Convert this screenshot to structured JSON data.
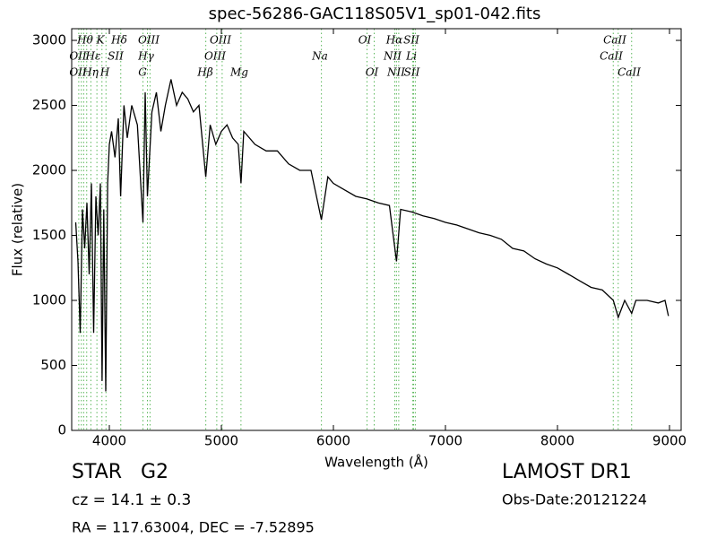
{
  "chart_data": {
    "type": "line",
    "title": "spec-56286-GAC118S05V1_sp01-042.fits",
    "xlabel": "Wavelength (Å)",
    "ylabel": "Flux (relative)",
    "color": "#000000",
    "line_color": "#5cb85c",
    "xlim": [
      3664,
      9104
    ],
    "ylim": [
      0,
      3090
    ],
    "xticks": [
      4000,
      5000,
      6000,
      7000,
      8000,
      9000
    ],
    "yticks": [
      0,
      500,
      1000,
      1500,
      2000,
      2500,
      3000
    ],
    "x": [
      3700,
      3720,
      3740,
      3760,
      3780,
      3800,
      3820,
      3840,
      3860,
      3880,
      3900,
      3920,
      3935,
      3950,
      3968,
      3985,
      4000,
      4020,
      4050,
      4080,
      4101,
      4130,
      4160,
      4200,
      4250,
      4300,
      4320,
      4340,
      4380,
      4420,
      4460,
      4500,
      4550,
      4600,
      4650,
      4700,
      4750,
      4800,
      4861,
      4900,
      4950,
      5000,
      5050,
      5100,
      5150,
      5175,
      5200,
      5300,
      5400,
      5500,
      5600,
      5700,
      5800,
      5893,
      5950,
      6000,
      6100,
      6200,
      6300,
      6400,
      6500,
      6563,
      6600,
      6700,
      6800,
      6900,
      7000,
      7100,
      7200,
      7300,
      7400,
      7500,
      7600,
      7700,
      7800,
      7900,
      8000,
      8100,
      8200,
      8300,
      8400,
      8498,
      8542,
      8600,
      8662,
      8700,
      8800,
      8900,
      8960,
      8990
    ],
    "values": [
      1600,
      1300,
      750,
      1700,
      1400,
      1750,
      1200,
      1900,
      750,
      1800,
      1500,
      1900,
      380,
      1700,
      300,
      1900,
      2200,
      2300,
      2100,
      2400,
      1800,
      2500,
      2250,
      2500,
      2350,
      1600,
      2600,
      1800,
      2450,
      2600,
      2300,
      2500,
      2700,
      2500,
      2600,
      2550,
      2450,
      2500,
      1950,
      2350,
      2200,
      2300,
      2350,
      2250,
      2200,
      1900,
      2300,
      2200,
      2150,
      2150,
      2050,
      2000,
      2000,
      1620,
      1950,
      1900,
      1850,
      1800,
      1780,
      1750,
      1730,
      1300,
      1700,
      1680,
      1650,
      1630,
      1600,
      1580,
      1550,
      1520,
      1500,
      1470,
      1400,
      1380,
      1320,
      1280,
      1250,
      1200,
      1150,
      1100,
      1080,
      1000,
      870,
      1000,
      900,
      1000,
      1000,
      980,
      1000,
      880
    ],
    "lines": [
      3727,
      3750,
      3771,
      3798,
      3835,
      3889,
      3934,
      3970,
      4102,
      4300,
      4340,
      4363,
      4861,
      4959,
      5007,
      5175,
      5893,
      6300,
      6364,
      6548,
      6563,
      6583,
      6707,
      6716,
      6731,
      8498,
      8542,
      8662
    ],
    "annotations": [
      {
        "text": "Hθ",
        "x": 3784
      },
      {
        "text": "K",
        "x": 3920
      },
      {
        "text": "Hδ",
        "x": 4088
      },
      {
        "text": "OIII",
        "x": 4352
      },
      {
        "text": "OIII",
        "x": 4992
      },
      {
        "text": "OI",
        "x": 6280
      },
      {
        "text": "Hα",
        "x": 6544
      },
      {
        "text": "SII",
        "x": 6696
      },
      {
        "text": "CaII",
        "x": 8512
      },
      {
        "text": "OII",
        "x": 3720
      },
      {
        "text": "Hε",
        "x": 3856
      },
      {
        "text": "SII",
        "x": 4056
      },
      {
        "text": "Hγ",
        "x": 4328
      },
      {
        "text": "OIII",
        "x": 4944
      },
      {
        "text": "Na",
        "x": 5880
      },
      {
        "text": "NII",
        "x": 6528
      },
      {
        "text": "Li",
        "x": 6696
      },
      {
        "text": "CaII",
        "x": 8480
      },
      {
        "text": "OII",
        "x": 3720
      },
      {
        "text": "Hη",
        "x": 3832
      },
      {
        "text": "H",
        "x": 3960
      },
      {
        "text": "G",
        "x": 4296
      },
      {
        "text": "Hβ",
        "x": 4856
      },
      {
        "text": "Mg",
        "x": 5160
      },
      {
        "text": "OI",
        "x": 6344
      },
      {
        "text": "NII",
        "x": 6560
      },
      {
        "text": "SII",
        "x": 6700
      },
      {
        "text": "CaII",
        "x": 8640
      }
    ]
  },
  "footer": {
    "object": "STAR   G2",
    "cz": "cz = 14.1 ± 0.3",
    "coords": "RA = 117.63004, DEC = -7.52895",
    "survey": "LAMOST DR1",
    "date": "Obs-Date:20121224"
  }
}
